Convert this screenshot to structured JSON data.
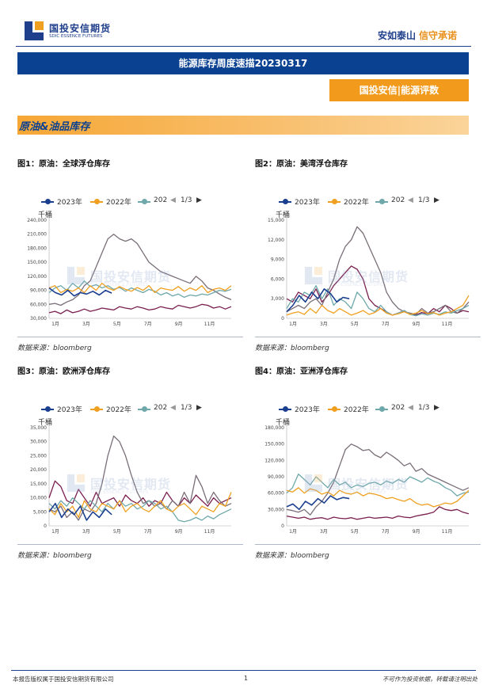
{
  "header": {
    "logo_cn": "国投安信期货",
    "logo_en": "SDIC ESSENCE FUTURES",
    "slogan_a": "安如泰山",
    "slogan_b": "信守承诺"
  },
  "report_title": "能源库存周度速描20230317",
  "subtitle": "国投安信|能源评数",
  "section_title": "原油&油品库存",
  "watermark": {
    "cn": "国投安信期货",
    "en": "SDIC ESSENCE FUTURES"
  },
  "colors": {
    "s2023": "#1b3f8f",
    "s2022": "#f0a020",
    "s2021": "#6fa8aa",
    "s2020": "#7a6e78",
    "s2019": "#7a1f4f"
  },
  "panels": [
    {
      "title": "图1：原油：全球浮仓库存",
      "unit": "千桶",
      "source": "数据来源：bloomberg",
      "legend": [
        "2023年",
        "2022年",
        "202"
      ],
      "pager": "1/3",
      "chart_data": {
        "type": "line",
        "x_ticks": [
          "1月",
          "3月",
          "5月",
          "7月",
          "9月",
          "11月"
        ],
        "y_ticks": [
          "30,000",
          "60,000",
          "90,000",
          "120,000",
          "150,000",
          "180,000",
          "210,000",
          "240,000"
        ],
        "ylim": [
          30000,
          240000
        ],
        "series": [
          {
            "name": "2023年",
            "color_key": "s2023",
            "values": [
              95000,
              85000,
              80000,
              90000,
              78000,
              85000,
              82000,
              88000,
              80000,
              90000,
              84000
            ]
          },
          {
            "name": "2022年",
            "color_key": "s2022",
            "values": [
              95000,
              100000,
              85000,
              92000,
              88000,
              95000,
              85000,
              100000,
              90000,
              105000,
              95000,
              90000,
              98000,
              92000,
              88000,
              96000,
              90000,
              100000,
              85000,
              95000,
              92000,
              90000,
              98000,
              88000,
              95000,
              90000,
              100000,
              85000,
              92000,
              95000,
              90000,
              100000
            ]
          },
          {
            "name": "202",
            "color_key": "s2021",
            "values": [
              85000,
              95000,
              100000,
              90000,
              105000,
              95000,
              110000,
              98000,
              102000,
              95000,
              100000,
              92000,
              96000,
              88000,
              95000,
              90000,
              85000,
              92000,
              88000,
              80000,
              85000,
              78000,
              82000,
              75000,
              80000,
              78000,
              82000,
              80000,
              85000,
              90000,
              88000,
              92000
            ]
          },
          {
            "name": "",
            "color_key": "s2020",
            "values": [
              60000,
              62000,
              58000,
              65000,
              70000,
              80000,
              100000,
              110000,
              140000,
              170000,
              200000,
              210000,
              200000,
              195000,
              200000,
              190000,
              170000,
              150000,
              140000,
              130000,
              125000,
              120000,
              115000,
              110000,
              105000,
              120000,
              110000,
              95000,
              90000,
              82000,
              75000,
              70000
            ]
          },
          {
            "name": "",
            "color_key": "s2019",
            "values": [
              42000,
              45000,
              40000,
              48000,
              42000,
              45000,
              50000,
              45000,
              48000,
              52000,
              50000,
              48000,
              55000,
              52000,
              50000,
              55000,
              52000,
              48000,
              50000,
              55000,
              52000,
              50000,
              58000,
              55000,
              52000,
              55000,
              60000,
              58000,
              52000,
              55000,
              50000,
              55000
            ]
          }
        ]
      }
    },
    {
      "title": "图2：原油：美湾浮仓库存",
      "unit": "千桶",
      "source": "数据来源：bloomberg",
      "legend": [
        "2023年",
        "2022年",
        "202"
      ],
      "pager": "1/3",
      "chart_data": {
        "type": "line",
        "x_ticks": [
          "1月",
          "3月",
          "5月",
          "7月",
          "9月",
          "11月"
        ],
        "y_ticks": [
          "0",
          "3,000",
          "6,000",
          "9,000",
          "12,000",
          "15,000"
        ],
        "ylim": [
          0,
          15000
        ],
        "series": [
          {
            "name": "2023年",
            "color_key": "s2023",
            "values": [
              1000,
              2000,
              3500,
              2500,
              4000,
              3000,
              4500,
              3800,
              2500,
              3200,
              3000
            ]
          },
          {
            "name": "2022年",
            "color_key": "s2022",
            "values": [
              500,
              800,
              1000,
              600,
              1500,
              800,
              2000,
              1200,
              800,
              1500,
              1000,
              500,
              800,
              1200,
              600,
              900,
              1500,
              800,
              500,
              700,
              1000,
              600,
              800,
              1200,
              700,
              900,
              500,
              800,
              1000,
              1500,
              2000,
              3500
            ]
          },
          {
            "name": "202",
            "color_key": "s2021",
            "values": [
              1500,
              3000,
              2500,
              4000,
              3500,
              5000,
              3000,
              4500,
              2000,
              3000,
              2500,
              1500,
              4000,
              3000,
              1500,
              1000,
              2000,
              1000,
              500,
              800,
              1200,
              600,
              400,
              700,
              500,
              800,
              600,
              1000,
              800,
              1200,
              1500,
              2000
            ]
          },
          {
            "name": "",
            "color_key": "s2020",
            "values": [
              1000,
              1500,
              2000,
              1500,
              2500,
              3000,
              2000,
              4000,
              6000,
              9000,
              11000,
              12000,
              14000,
              13000,
              11000,
              9000,
              7000,
              4000,
              2500,
              1500,
              1000,
              800,
              600,
              1500,
              800,
              1000,
              1500,
              2000,
              1000,
              800,
              1500,
              2500
            ]
          },
          {
            "name": "",
            "color_key": "s2019",
            "values": [
              3000,
              2500,
              4000,
              3500,
              3000,
              4500,
              2500,
              3500,
              5000,
              6000,
              7000,
              8000,
              7500,
              6000,
              3000,
              2000,
              1500,
              1000,
              500,
              800,
              1200,
              600,
              500,
              900,
              700,
              1500,
              1000,
              2000,
              1500,
              800,
              1200,
              1000
            ]
          }
        ]
      }
    },
    {
      "title": "图3：原油：欧洲浮仓库存",
      "unit": "千桶",
      "source": "数据来源：bloomberg",
      "legend": [
        "2023年",
        "2022年",
        "202"
      ],
      "pager": "1/3",
      "chart_data": {
        "type": "line",
        "x_ticks": [
          "1月",
          "3月",
          "5月",
          "7月",
          "9月",
          "11月"
        ],
        "y_ticks": [
          "0",
          "5,000",
          "10,000",
          "15,000",
          "20,000",
          "25,000",
          "30,000",
          "35,000"
        ],
        "ylim": [
          0,
          35000
        ],
        "series": [
          {
            "name": "2023年",
            "color_key": "s2023",
            "values": [
              5000,
              8000,
              3000,
              6000,
              4000,
              7000,
              2000,
              5000,
              3000,
              6000,
              4000
            ]
          },
          {
            "name": "2022年",
            "color_key": "s2022",
            "values": [
              6000,
              4000,
              8000,
              5000,
              7000,
              3000,
              9000,
              6000,
              5000,
              8000,
              7000,
              6000,
              9000,
              5000,
              7000,
              8000,
              6000,
              5000,
              7000,
              9000,
              6000,
              5000,
              7000,
              8000,
              6000,
              4000,
              7000,
              6000,
              5000,
              8000,
              7000,
              12000
            ]
          },
          {
            "name": "202",
            "color_key": "s2021",
            "values": [
              8000,
              6000,
              9000,
              7000,
              10000,
              8000,
              6000,
              9000,
              7000,
              5000,
              8000,
              6000,
              9000,
              7000,
              8000,
              6000,
              7000,
              9000,
              8000,
              6000,
              7000,
              5000,
              2000,
              1500,
              2000,
              3000,
              2000,
              3500,
              2500,
              4000,
              5000,
              6000
            ]
          },
          {
            "name": "",
            "color_key": "s2020",
            "values": [
              6000,
              5000,
              7000,
              3000,
              5000,
              2000,
              6000,
              5000,
              8000,
              15000,
              25000,
              32000,
              30000,
              25000,
              18000,
              12000,
              8000,
              9000,
              7000,
              8000,
              6000,
              9000,
              7000,
              12000,
              8000,
              18000,
              14000,
              8000,
              12000,
              9000,
              7000,
              8000
            ]
          },
          {
            "name": "",
            "color_key": "s2019",
            "values": [
              10000,
              16000,
              14000,
              9000,
              8000,
              13000,
              10000,
              7000,
              12000,
              8000,
              9000,
              10000,
              7000,
              11000,
              9000,
              8000,
              10000,
              7000,
              9000,
              8000,
              12000,
              9000,
              7000,
              10000,
              8000,
              11000,
              9000,
              7000,
              10000,
              8000,
              9000,
              10000
            ]
          }
        ]
      }
    },
    {
      "title": "图4：原油：亚洲浮仓库存",
      "unit": "千桶",
      "source": "数据来源：bloomberg",
      "legend": [
        "2023年",
        "2022年",
        "202"
      ],
      "pager": "1/3",
      "chart_data": {
        "type": "line",
        "x_ticks": [
          "1月",
          "3月",
          "5月",
          "7月",
          "9月",
          "11月"
        ],
        "y_ticks": [
          "0",
          "30,000",
          "60,000",
          "90,000",
          "120,000",
          "150,000",
          "180,000"
        ],
        "ylim": [
          0,
          180000
        ],
        "series": [
          {
            "name": "2023年",
            "color_key": "s2023",
            "values": [
              35000,
              40000,
              30000,
              45000,
              38000,
              50000,
              42000,
              55000,
              48000,
              52000,
              50000
            ]
          },
          {
            "name": "2022年",
            "color_key": "s2022",
            "values": [
              65000,
              62000,
              70000,
              60000,
              68000,
              65000,
              58000,
              62000,
              55000,
              65000,
              60000,
              58000,
              62000,
              55000,
              60000,
              58000,
              55000,
              50000,
              52000,
              48000,
              45000,
              50000,
              42000,
              38000,
              40000,
              35000,
              38000,
              42000,
              40000,
              45000,
              55000,
              65000
            ]
          },
          {
            "name": "202",
            "color_key": "s2021",
            "values": [
              60000,
              70000,
              95000,
              85000,
              75000,
              90000,
              80000,
              70000,
              85000,
              75000,
              80000,
              70000,
              75000,
              72000,
              78000,
              80000,
              75000,
              82000,
              78000,
              85000,
              80000,
              90000,
              85000,
              80000,
              88000,
              82000,
              78000,
              70000,
              65000,
              55000,
              60000,
              62000
            ]
          },
          {
            "name": "",
            "color_key": "s2020",
            "values": [
              30000,
              28000,
              25000,
              30000,
              20000,
              35000,
              45000,
              60000,
              80000,
              110000,
              140000,
              150000,
              145000,
              138000,
              140000,
              130000,
              125000,
              135000,
              128000,
              120000,
              110000,
              115000,
              100000,
              105000,
              95000,
              90000,
              85000,
              80000,
              75000,
              70000,
              65000,
              70000
            ]
          },
          {
            "name": "",
            "color_key": "s2019",
            "values": [
              18000,
              16000,
              14000,
              16000,
              12000,
              14000,
              15000,
              12000,
              16000,
              14000,
              13000,
              15000,
              12000,
              14000,
              16000,
              14000,
              15000,
              16000,
              14000,
              18000,
              16000,
              15000,
              18000,
              20000,
              22000,
              25000,
              35000,
              30000,
              28000,
              30000,
              25000,
              22000
            ]
          }
        ]
      }
    }
  ],
  "footer": {
    "left": "本报告版权属于国投安信期货有限公司",
    "page": "1",
    "right": "不可作为投资依据，转载请注明出处"
  }
}
